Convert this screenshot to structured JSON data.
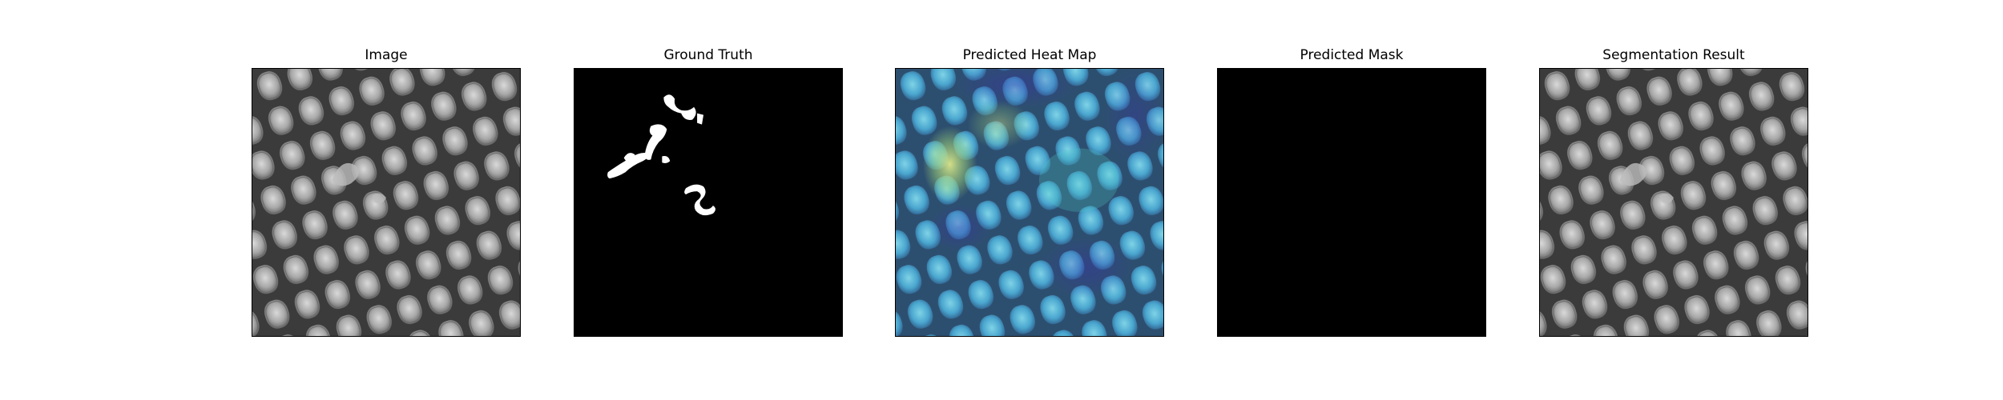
{
  "panels": [
    {
      "title": "Image",
      "content": "textured-mesh-image"
    },
    {
      "title": "Ground Truth",
      "content": "binary-defect-mask"
    },
    {
      "title": "Predicted Heat Map",
      "content": "heatmap-overlay"
    },
    {
      "title": "Predicted Mask",
      "content": "empty-black-mask"
    },
    {
      "title": "Segmentation Result",
      "content": "textured-mesh-image"
    }
  ],
  "colors": {
    "background": "#ffffff",
    "mask_background": "#000000",
    "mask_foreground": "#ffffff",
    "mesh_dark": "#3a3a3a",
    "mesh_light": "#c8c8c8",
    "heat_low": "#2c2f9e",
    "heat_mid": "#3fb5c0",
    "heat_high": "#d6e68a"
  }
}
